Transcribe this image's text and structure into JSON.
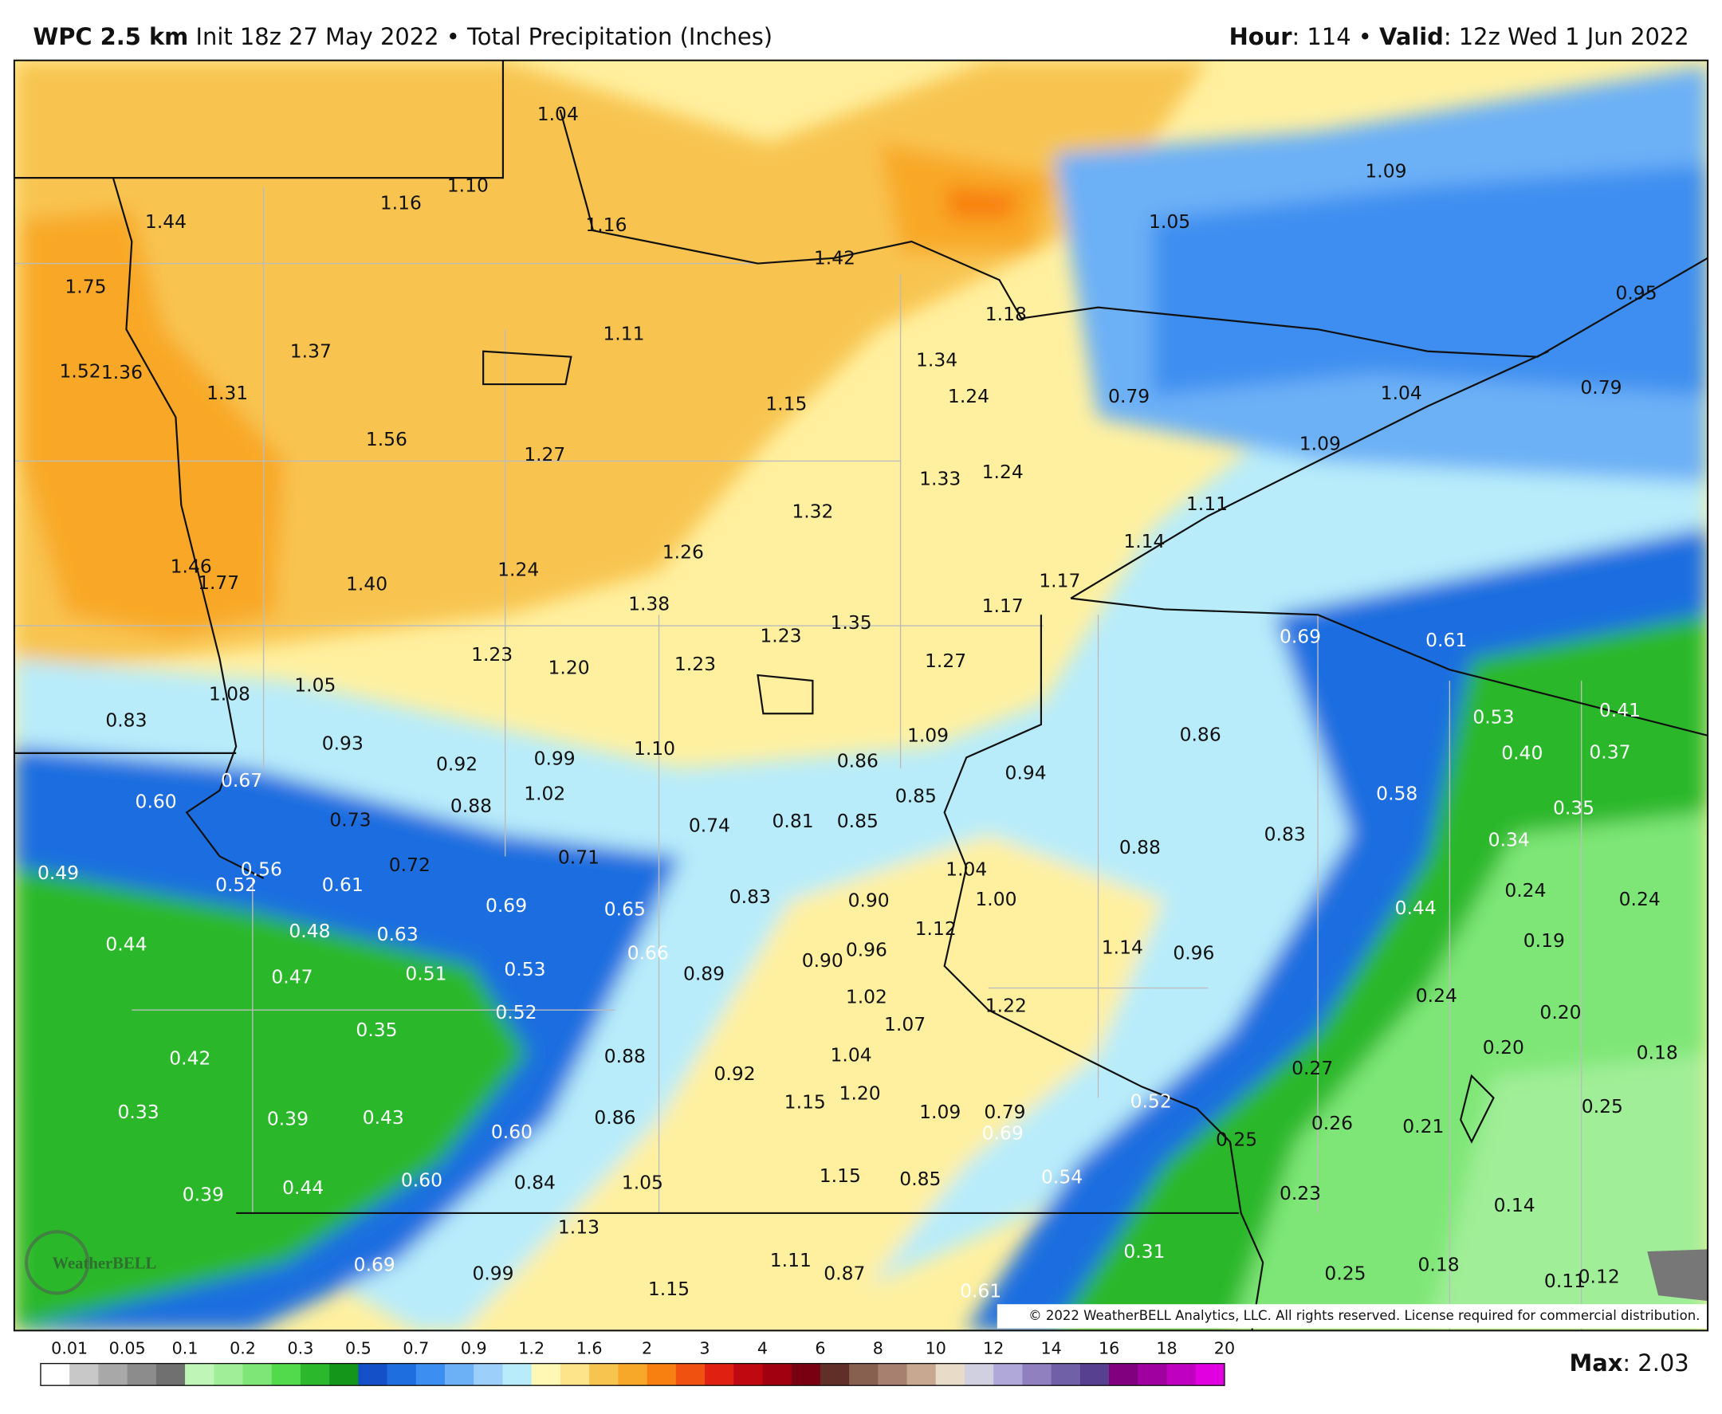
{
  "header": {
    "model": "WPC 2.5 km",
    "product": "Init 18z 27 May 2022 • Total Precipitation (Inches)",
    "hour_label": "Hour",
    "hour_value": ": 114 •",
    "valid_label": "Valid",
    "valid_value": ": 12z Wed 1 Jun 2022"
  },
  "map": {
    "labels": [
      "1.04",
      "1.10",
      "1.16",
      "1.44",
      "1.16",
      "1.42",
      "1.09",
      "1.05",
      "1.75",
      "0.95",
      "1.18",
      "1.11",
      "1.37",
      "1.34",
      "1.52",
      "1.36",
      "1.31",
      "1.15",
      "1.24",
      "0.79",
      "1.04",
      "0.79",
      "1.56",
      "1.09",
      "1.27",
      "1.33",
      "1.24",
      "1.32",
      "1.11",
      "1.26",
      "1.14",
      "1.46",
      "1.77",
      "1.40",
      "1.24",
      "1.17",
      "1.38",
      "1.17",
      "1.35",
      "1.23",
      "0.69",
      "0.61",
      "1.23",
      "1.20",
      "1.23",
      "1.27",
      "1.05",
      "1.08",
      "0.83",
      "0.53",
      "0.41",
      "1.09",
      "0.86",
      "0.93",
      "0.92",
      "0.99",
      "1.10",
      "0.86",
      "0.40",
      "0.37",
      "0.94",
      "0.67",
      "0.60",
      "1.02",
      "0.88",
      "0.85",
      "0.58",
      "0.35",
      "0.73",
      "0.74",
      "0.81",
      "0.85",
      "0.83",
      "0.88",
      "0.34",
      "0.71",
      "0.72",
      "1.04",
      "0.49",
      "0.56",
      "0.52",
      "0.61",
      "0.83",
      "0.90",
      "1.00",
      "0.69",
      "0.65",
      "0.44",
      "0.24",
      "0.24",
      "0.48",
      "0.63",
      "1.12",
      "0.44",
      "0.19",
      "0.66",
      "0.96",
      "0.90",
      "1.14",
      "0.96",
      "0.47",
      "0.51",
      "0.53",
      "0.89",
      "0.24",
      "1.02",
      "1.22",
      "0.20",
      "0.35",
      "0.52",
      "1.07",
      "0.42",
      "0.88",
      "1.04",
      "0.20",
      "0.18",
      "0.27",
      "0.92",
      "1.20",
      "1.15",
      "0.52",
      "1.09",
      "0.79",
      "0.69",
      "0.33",
      "0.39",
      "0.43",
      "0.60",
      "0.86",
      "0.26",
      "0.21",
      "0.25",
      "0.25",
      "0.60",
      "0.84",
      "1.05",
      "1.15",
      "0.85",
      "0.54",
      "0.44",
      "0.39",
      "0.23",
      "0.14",
      "1.13",
      "0.31",
      "1.11",
      "0.87",
      "0.69",
      "0.99",
      "0.25",
      "0.18",
      "0.11",
      "0.12",
      "1.15",
      "0.61"
    ],
    "copyright": "© 2022 WeatherBELL Analytics, LLC. All rights reserved. License required for commercial distribution.",
    "logo": "WeatherBELL"
  },
  "legend": {
    "ticks": [
      "0.01",
      "0.05",
      "0.1",
      "0.2",
      "0.3",
      "0.5",
      "0.7",
      "0.9",
      "1.2",
      "1.6",
      "2",
      "3",
      "4",
      "6",
      "8",
      "10",
      "12",
      "14",
      "16",
      "18",
      "20"
    ],
    "colors": [
      "#ffffff",
      "#c8c8c8",
      "#a8a8a8",
      "#8c8c8c",
      "#707070",
      "#c0f5b8",
      "#a0ee98",
      "#7ee676",
      "#52da4c",
      "#2cb82c",
      "#14961a",
      "#1450c8",
      "#1e6ee0",
      "#3c8ef0",
      "#6cb0f6",
      "#9cd0fa",
      "#b8ecfa",
      "#fff8b4",
      "#fde48a",
      "#f8c450",
      "#f8a828",
      "#f88010",
      "#f05010",
      "#e02010",
      "#c00810",
      "#a00010",
      "#780010",
      "#603028",
      "#886050",
      "#a88070",
      "#c8a890",
      "#e8dcc8",
      "#d0d0e0",
      "#b0a8d8",
      "#9080c0",
      "#7060a8",
      "#584090",
      "#800080",
      "#a000a0",
      "#c000c0",
      "#e000e0"
    ]
  },
  "footer": {
    "max_label": "Max",
    "max_value": ": 2.03"
  }
}
